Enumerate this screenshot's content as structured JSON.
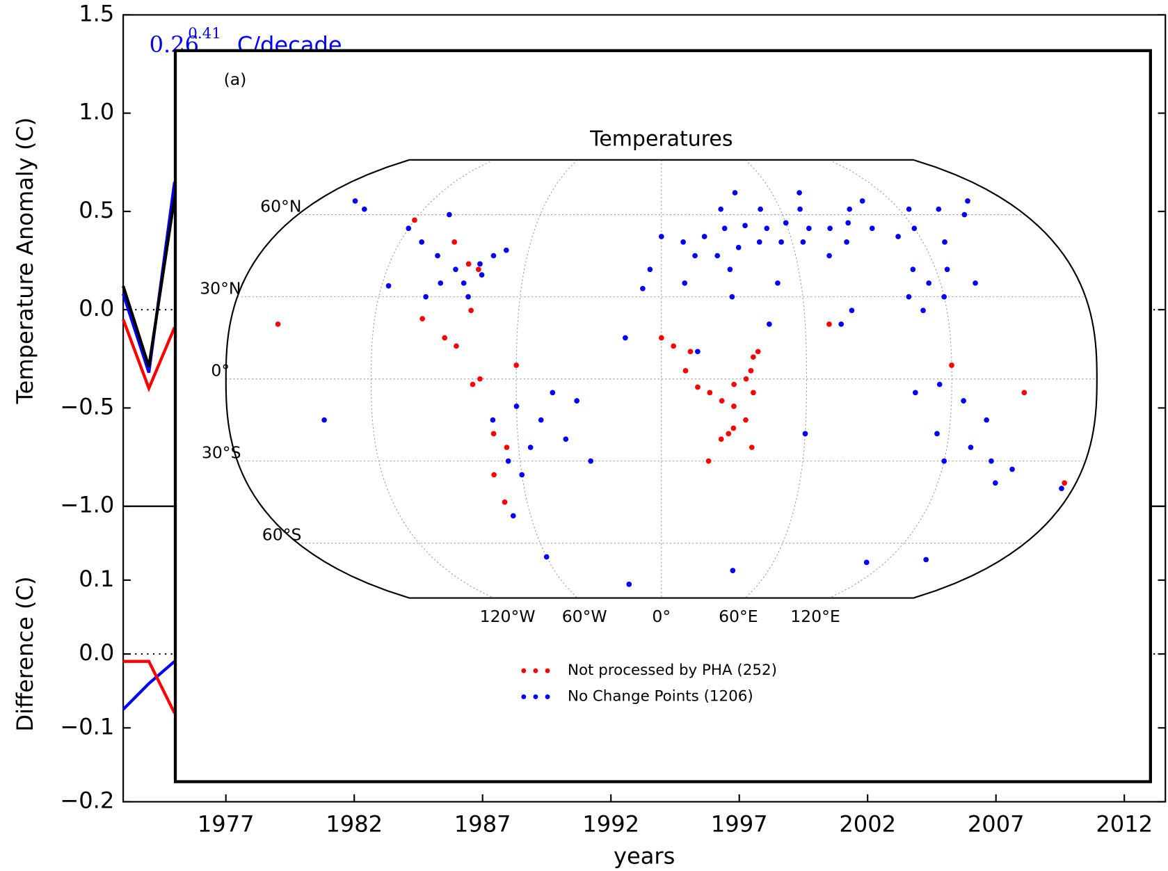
{
  "chart_data": [
    {
      "type": "line",
      "ylabel": "Temperature Anomaly (C)",
      "annotation": {
        "text": "0.26",
        "sup": "0.41",
        "unit": "C/decade"
      },
      "x": [
        1973,
        1974,
        1975
      ],
      "xlim": [
        1973,
        2013.6
      ],
      "ylim": [
        -1.0,
        1.5
      ],
      "yticks": [
        {
          "value": -1.0,
          "label": "−1.0"
        },
        {
          "value": -0.5,
          "label": "−0.5"
        },
        {
          "value": 0.0,
          "label": "0.0"
        },
        0.5,
        {
          "value": 1.0,
          "label": "1.0"
        },
        1.5
      ],
      "zero_line": true,
      "series": [
        {
          "color": "#ff0000",
          "values": [
            -0.05,
            -0.4,
            -0.09
          ]
        },
        {
          "color": "#0000ff",
          "values": [
            0.08,
            -0.32,
            0.65
          ]
        },
        {
          "color": "#000000",
          "values": [
            0.12,
            -0.29,
            0.57
          ]
        }
      ]
    },
    {
      "type": "line",
      "ylabel": "Difference (C)",
      "xlabel": "years",
      "x": [
        1973,
        1974,
        1975
      ],
      "xlim": [
        1973,
        2013.6
      ],
      "ylim": [
        -0.2,
        0.2
      ],
      "xticks": [
        1977,
        1982,
        1987,
        1992,
        1997,
        2002,
        2007,
        2012
      ],
      "yticks": [
        {
          "value": -0.2,
          "label": "−0.2"
        },
        {
          "value": -0.1,
          "label": "−0.1"
        },
        {
          "value": 0.0,
          "label": "0.0"
        },
        0.1
      ],
      "zero_line": true,
      "series": [
        {
          "color": "#0000ff",
          "values": [
            -0.075,
            -0.04,
            -0.01
          ]
        },
        {
          "color": "#ff0000",
          "values": [
            -0.01,
            -0.01,
            -0.08
          ]
        }
      ]
    },
    {
      "type": "map",
      "panel_label": "(a)",
      "title": "Temperatures",
      "xlim": [
        -180,
        180
      ],
      "ylim": [
        -80,
        80
      ],
      "xticks": [
        {
          "value": -120,
          "label": "120°W"
        },
        {
          "value": -60,
          "label": "60°W"
        },
        {
          "value": 0,
          "label": "0°"
        },
        {
          "value": 60,
          "label": "60°E"
        },
        {
          "value": 120,
          "label": "120°E"
        }
      ],
      "yticks": [
        {
          "value": -60,
          "label": "60°S"
        },
        {
          "value": -30,
          "label": "30°S"
        },
        {
          "value": 0,
          "label": "0°"
        },
        {
          "value": 30,
          "label": "30°N"
        },
        {
          "value": 60,
          "label": "60°N"
        }
      ],
      "series": [
        {
          "name": "Not processed by PHA (252)",
          "color": "#ff0000",
          "x": [
            20,
            25,
            30,
            35,
            37,
            38,
            30,
            28,
            25,
            30,
            35,
            38,
            20,
            10,
            15,
            12,
            5,
            0,
            40,
            38,
            -90,
            -85,
            -100,
            -80,
            -75,
            -78,
            -70,
            -65,
            -72,
            -70,
            -120,
            -95,
            -85,
            -80,
            -60,
            120,
            150,
            175,
            70,
            -160
          ],
          "values": [
            -5,
            -8,
            -2,
            0,
            3,
            -5,
            -10,
            -20,
            -22,
            -18,
            -15,
            -25,
            -30,
            3,
            -3,
            10,
            12,
            15,
            10,
            8,
            15,
            12,
            22,
            25,
            0,
            -2,
            -20,
            -25,
            -35,
            -45,
            58,
            50,
            42,
            40,
            5,
            5,
            -5,
            -38,
            20,
            20
          ]
        },
        {
          "name": "No Change Points (1206)",
          "color": "#0000ff",
          "x": [
            -100,
            -90,
            -80,
            -75,
            -95,
            -85,
            -110,
            -120,
            -150,
            -160,
            -105,
            -70,
            -78,
            -82,
            -100,
            -117,
            10,
            20,
            30,
            40,
            50,
            60,
            70,
            80,
            90,
            100,
            110,
            120,
            130,
            140,
            150,
            0,
            -5,
            15,
            25,
            35,
            45,
            55,
            65,
            75,
            85,
            95,
            105,
            125,
            160,
            30,
            50,
            70,
            40,
            75,
            110,
            115,
            105,
            120,
            125,
            110,
            135,
            80,
            75,
            50,
            30,
            -8,
            10,
            30,
            45,
            -15,
            15,
            -60,
            -50,
            -45,
            -40,
            -55,
            -70,
            -60,
            -65,
            -68,
            -35,
            120,
            130,
            140,
            145,
            150,
            115,
            135,
            175,
            105,
            115,
            125,
            -140,
            -30,
            60,
            -60,
            -20,
            40,
            110,
            140
          ],
          "values": [
            45,
            40,
            42,
            45,
            35,
            35,
            50,
            55,
            62,
            65,
            60,
            47,
            38,
            30,
            30,
            34,
            50,
            52,
            55,
            56,
            55,
            57,
            55,
            55,
            57,
            55,
            52,
            55,
            50,
            62,
            60,
            52,
            40,
            45,
            45,
            48,
            50,
            50,
            50,
            45,
            50,
            62,
            65,
            62,
            65,
            62,
            62,
            62,
            68,
            68,
            40,
            35,
            30,
            30,
            40,
            25,
            35,
            25,
            20,
            35,
            40,
            33,
            35,
            30,
            20,
            15,
            10,
            -10,
            -15,
            -5,
            -22,
            -25,
            -15,
            -35,
            -30,
            -50,
            -8,
            -30,
            -25,
            -30,
            -38,
            -33,
            -20,
            -15,
            -40,
            -5,
            -2,
            -8,
            -15,
            -30,
            -20,
            -65,
            -75,
            -70,
            -67,
            -66
          ]
        }
      ]
    }
  ]
}
